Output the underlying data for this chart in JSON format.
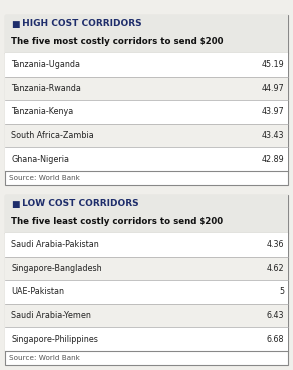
{
  "low_title_icon": "■",
  "low_title_label": " LOW COST CORRIDORS",
  "low_subtitle": "The five least costly corridors to send $200",
  "low_rows": [
    [
      "Saudi Arabia-Pakistan",
      "4.36"
    ],
    [
      "Singapore-Bangladesh",
      "4.62"
    ],
    [
      "UAE-Pakistan",
      "5"
    ],
    [
      "Saudi Arabia-Yemen",
      "6.43"
    ],
    [
      "Singapore-Philippines",
      "6.68"
    ]
  ],
  "low_source": "Source: World Bank",
  "high_title_icon": "■",
  "high_title_label": " HIGH COST CORRIDORS",
  "high_subtitle": "The five most costly corridors to send $200",
  "high_rows": [
    [
      "Tanzania-Uganda",
      "45.19"
    ],
    [
      "Tanzania-Rwanda",
      "44.97"
    ],
    [
      "Tanzania-Kenya",
      "43.97"
    ],
    [
      "South Africa-Zambia",
      "43.43"
    ],
    [
      "Ghana-Nigeria",
      "42.89"
    ]
  ],
  "high_source": "Source: World Bank",
  "bg_color": "#f0efeb",
  "border_color": "#888888",
  "table_bg": "#ffffff",
  "header_bg": "#e8e8e4",
  "icon_color": "#1e2d6b",
  "title_color": "#1e2d6b",
  "subtitle_color": "#111111",
  "row_colors": [
    "#ffffff",
    "#f0efeb"
  ],
  "text_color": "#222222",
  "source_color": "#555555",
  "divider_color": "#aaaaaa",
  "col_split": 0.74
}
